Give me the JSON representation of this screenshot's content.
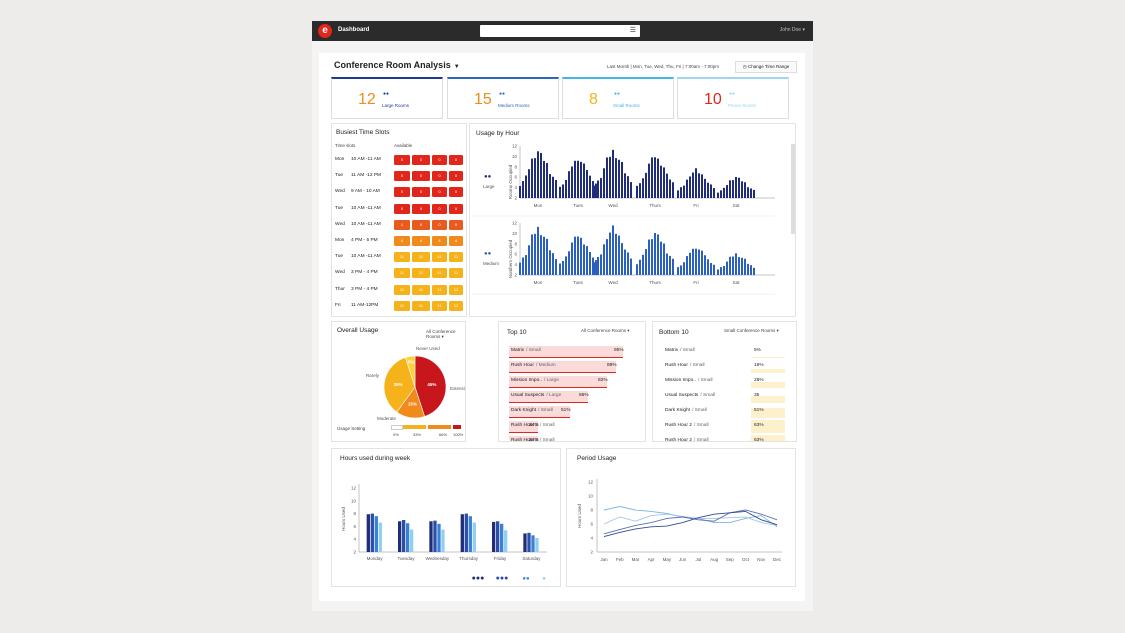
{
  "app": {
    "title": "Dashboard",
    "logo": "e",
    "user": "John Doe ▾"
  },
  "header": {
    "title": "Conference Room Analysis",
    "range": "Last Month  |  Mon, Tue, Wed, Thu, Fri  |  7:00am - 7:00pm",
    "change_range": "Change Time Range"
  },
  "kpis": [
    {
      "value": "12",
      "label": "Large Rooms",
      "color": "#ef8c1c",
      "border": "#1f3a93",
      "icon": "large-group-icon"
    },
    {
      "value": "15",
      "label": "Medium Rooms",
      "color": "#ef8c1c",
      "border": "#2b66c4",
      "icon": "medium-group-icon"
    },
    {
      "value": "8",
      "label": "Small Rooms",
      "color": "#f3b21b",
      "border": "#42b6e6",
      "icon": "small-group-icon"
    },
    {
      "value": "10",
      "label": "Phone Booths",
      "color": "#e1261c",
      "border": "#9fd7f1",
      "icon": "person-icon"
    }
  ],
  "busiest": {
    "title": "Busiest Time Slots",
    "col_time": "Time slots",
    "col_avail": "Available",
    "rows": [
      {
        "day": "Mon",
        "time": "10 AM -11 AM",
        "color": "#e1261c",
        "chips": [
          "0",
          "0",
          "0",
          "0"
        ]
      },
      {
        "day": "Tue",
        "time": "11 AM -12 PM",
        "color": "#e1261c",
        "chips": [
          "0",
          "0",
          "0",
          "0"
        ]
      },
      {
        "day": "Wed",
        "time": "9 AM - 10 AM",
        "color": "#e1261c",
        "chips": [
          "0",
          "0",
          "0",
          "0"
        ]
      },
      {
        "day": "Tue",
        "time": "10 AM -11 AM",
        "color": "#e1261c",
        "chips": [
          "0",
          "0",
          "0",
          "0"
        ]
      },
      {
        "day": "Wed",
        "time": "10 AM -11 AM",
        "color": "#e95a1e",
        "chips": [
          "1",
          "0",
          "0",
          "0"
        ]
      },
      {
        "day": "Mon",
        "time": "4 PM - 5 PM",
        "color": "#f08a1c",
        "chips": [
          "4",
          "4",
          "4",
          "4"
        ]
      },
      {
        "day": "Tue",
        "time": "10 AM -11 AM",
        "color": "#f5b21a",
        "chips": [
          "11",
          "11",
          "11",
          "11"
        ]
      },
      {
        "day": "Wed",
        "time": "3 PM - 4 PM",
        "color": "#f5b21a",
        "chips": [
          "11",
          "11",
          "11",
          "11"
        ]
      },
      {
        "day": "Thur",
        "time": "3 PM - 4 PM",
        "color": "#f5b21a",
        "chips": [
          "11",
          "11",
          "11",
          "11"
        ]
      },
      {
        "day": "Fri",
        "time": "11 AM-12PM",
        "color": "#f5b21a",
        "chips": [
          "11",
          "11",
          "11",
          "11"
        ]
      }
    ]
  },
  "usage_by_hour": {
    "title": "Usage by Hour",
    "panels": [
      {
        "label": "Large",
        "ylabel": "Rooms Occupied",
        "color": "#1f2d7a",
        "yticks": [
          "12",
          "10",
          "8",
          "6",
          "4",
          "2"
        ]
      },
      {
        "label": "Medium",
        "ylabel": "Numbers Occupied",
        "color": "#2b5fc0",
        "yticks": [
          "12",
          "10",
          "8",
          "6",
          "4",
          "2"
        ]
      }
    ],
    "days": [
      "Mon",
      "Tues",
      "Wed",
      "Thurs",
      "Fri",
      "Sat"
    ]
  },
  "overall": {
    "title": "Overall Usage",
    "dropdown": "All Conference Rooms",
    "labels": {
      "never": "Never Used",
      "rarely": "Rarely",
      "extensive": "Extensive",
      "moderate": "Moderate"
    },
    "setting_label": "Usage Setting",
    "scale": [
      "0%",
      "33%",
      "66%",
      "100%"
    ]
  },
  "top10": {
    "title": "Top 10",
    "dropdown": "All Conference Rooms",
    "rows": [
      {
        "name": "Matrix",
        "size": "/ Small",
        "value": "95%",
        "pct": 95
      },
      {
        "name": "Rush Hour",
        "size": "/ Medium",
        "value": "89%",
        "pct": 89
      },
      {
        "name": "Mission Impo..",
        "size": "/ Large",
        "value": "82%",
        "pct": 82
      },
      {
        "name": "Usual Suspects",
        "size": "/ Large",
        "value": "66%",
        "pct": 66
      },
      {
        "name": "Dark Knight",
        "size": "/ Small",
        "value": "51%",
        "pct": 51
      },
      {
        "name": "Rush Hour 2",
        "size": "/ Small",
        "value": "24%",
        "pct": 24
      },
      {
        "name": "Rush Hour 2",
        "size": "/ Small",
        "value": "24%",
        "pct": 24
      }
    ]
  },
  "bottom10": {
    "title": "Bottom 10",
    "dropdown": "Small Conference Rooms",
    "rows": [
      {
        "name": "Matrix",
        "size": "/ Small",
        "value": "5%",
        "pct": 5
      },
      {
        "name": "Rush Hour",
        "size": "/ Small",
        "value": "19%",
        "pct": 19
      },
      {
        "name": "Mission Impo..",
        "size": "/ Small",
        "value": "28%",
        "pct": 28
      },
      {
        "name": "Usual Suspects",
        "size": "/ Small",
        "value": "35",
        "pct": 35
      },
      {
        "name": "Dark Knight",
        "size": "/ Small",
        "value": "51%",
        "pct": 51
      },
      {
        "name": "Rush Hour 2",
        "size": "/ Small",
        "value": "63%",
        "pct": 63
      },
      {
        "name": "Rush Hour 2",
        "size": "/ Small",
        "value": "63%",
        "pct": 63
      }
    ]
  },
  "hours_week": {
    "title": "Hours used during week"
  },
  "period": {
    "title": "Period Usage"
  },
  "chart_data": [
    {
      "type": "pie",
      "title": "Overall Usage",
      "categories": [
        "Extensive",
        "Moderate",
        "Rarely",
        "Never Used"
      ],
      "values": [
        45,
        15,
        35,
        5
      ],
      "labels": [
        "45%",
        "15%",
        "35%",
        "5%"
      ],
      "colors": [
        "#c8161d",
        "#f08a1c",
        "#f5b21a",
        "#fbd23a"
      ]
    },
    {
      "type": "bar",
      "title": "Hours used during week",
      "ylabel": "Hours Used",
      "ylim": [
        2,
        12
      ],
      "yticks": [
        2,
        4,
        6,
        8,
        10,
        12
      ],
      "categories": [
        "Monday",
        "Tuesday",
        "Wednesday",
        "Thursday",
        "Friday",
        "Saturday"
      ],
      "series": [
        {
          "values": [
            7.9,
            6.8,
            6.8,
            7.9,
            6.7,
            4.9
          ],
          "color": "#1f2d7a"
        },
        {
          "values": [
            8.0,
            7.0,
            6.9,
            8.0,
            6.8,
            5.0
          ],
          "color": "#2b4fa8"
        },
        {
          "values": [
            7.6,
            6.5,
            6.4,
            7.6,
            6.4,
            4.6
          ],
          "color": "#3a7fd8"
        },
        {
          "values": [
            6.6,
            5.5,
            5.5,
            6.6,
            5.4,
            4.2
          ],
          "color": "#8fd0f0"
        }
      ],
      "legend_icons": [
        "large-group-icon",
        "medium-group-icon",
        "small-group-icon",
        "person-icon"
      ]
    },
    {
      "type": "line",
      "title": "Period Usage",
      "ylabel": "Hours Used",
      "ylim": [
        2,
        12
      ],
      "yticks": [
        2,
        4,
        6,
        8,
        10,
        12
      ],
      "x": [
        "Jan",
        "Feb",
        "Mar",
        "Apr",
        "May",
        "Jun",
        "Jul",
        "Aug",
        "Sep",
        "Oct",
        "Nov",
        "Dec"
      ],
      "series": [
        {
          "color": "#7ab4e0",
          "values": [
            8.0,
            8.5,
            8.0,
            7.8,
            7.5,
            7.0,
            6.8,
            6.2,
            6.2,
            6.8,
            7.2,
            5.6
          ]
        },
        {
          "color": "#a6c4e8",
          "values": [
            6.0,
            7.0,
            6.4,
            7.2,
            7.4,
            7.1,
            6.8,
            6.8,
            6.9,
            7.0,
            6.2,
            5.8
          ]
        },
        {
          "color": "#5a6fb0",
          "values": [
            4.6,
            5.2,
            5.8,
            6.2,
            6.8,
            7.0,
            6.6,
            6.4,
            7.6,
            8.0,
            7.4,
            6.6
          ]
        },
        {
          "color": "#2f4a9a",
          "values": [
            4.2,
            4.8,
            5.3,
            5.6,
            5.7,
            6.2,
            6.9,
            7.4,
            7.6,
            7.8,
            6.6,
            5.9
          ]
        }
      ]
    }
  ]
}
